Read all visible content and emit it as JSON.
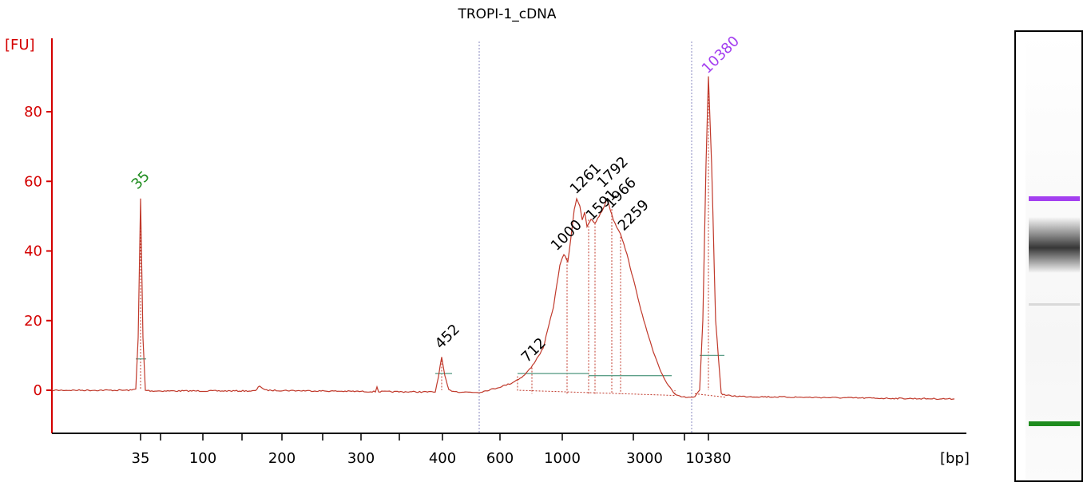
{
  "chart_data": {
    "type": "line",
    "title": "TROPI-1_cDNA",
    "ylabel": "[FU]",
    "xlabel": "[bp]",
    "ylim": [
      -12,
      100
    ],
    "y_ticks": [
      0,
      20,
      40,
      60,
      80
    ],
    "x_tick_labels": [
      "35",
      "100",
      "200",
      "300",
      "400",
      "600",
      "1000",
      "3000",
      "10380"
    ],
    "colors": {
      "trace": "#c0392b",
      "axis": "#d40000",
      "lower_marker": "#1e8c1e",
      "upper_marker": "#a33ff0",
      "peak_label": "#000000",
      "baseline": "#5fa08a"
    },
    "marker_peaks": [
      {
        "label": "35",
        "color": "#1e8c1e",
        "fu": 55
      },
      {
        "label": "10380",
        "color": "#a33ff0",
        "fu": 90
      }
    ],
    "peak_labels": [
      {
        "label": "452",
        "fu": 9.5
      },
      {
        "label": "712",
        "fu": 6.5
      },
      {
        "label": "1000",
        "fu": 39
      },
      {
        "label": "1261",
        "fu": 55
      },
      {
        "label": "1591",
        "fu": 48
      },
      {
        "label": "1792",
        "fu": 55
      },
      {
        "label": "1966",
        "fu": 52
      },
      {
        "label": "2259",
        "fu": 45
      }
    ]
  }
}
